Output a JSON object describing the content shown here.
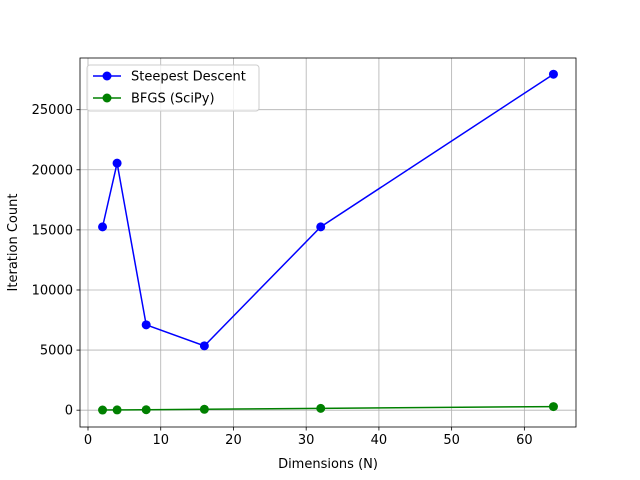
{
  "chart_data": {
    "type": "line",
    "title": "",
    "xlabel": "Dimensions (N)",
    "ylabel": "Iteration Count",
    "xlim": [
      -1.1,
      67.1
    ],
    "ylim": [
      -1400,
      29300
    ],
    "xticks": [
      0,
      10,
      20,
      30,
      40,
      50,
      60
    ],
    "yticks": [
      0,
      5000,
      10000,
      15000,
      20000,
      25000
    ],
    "grid": true,
    "legend_position": "top-left",
    "series": [
      {
        "name": "Steepest Descent",
        "color": "#0000ff",
        "x": [
          2,
          4,
          8,
          16,
          32,
          64
        ],
        "y": [
          15250,
          20550,
          7100,
          5350,
          15250,
          27950
        ]
      },
      {
        "name": "BFGS (SciPy)",
        "color": "#008000",
        "x": [
          2,
          4,
          8,
          16,
          32,
          64
        ],
        "y": [
          10,
          20,
          35,
          75,
          150,
          300
        ]
      }
    ]
  }
}
